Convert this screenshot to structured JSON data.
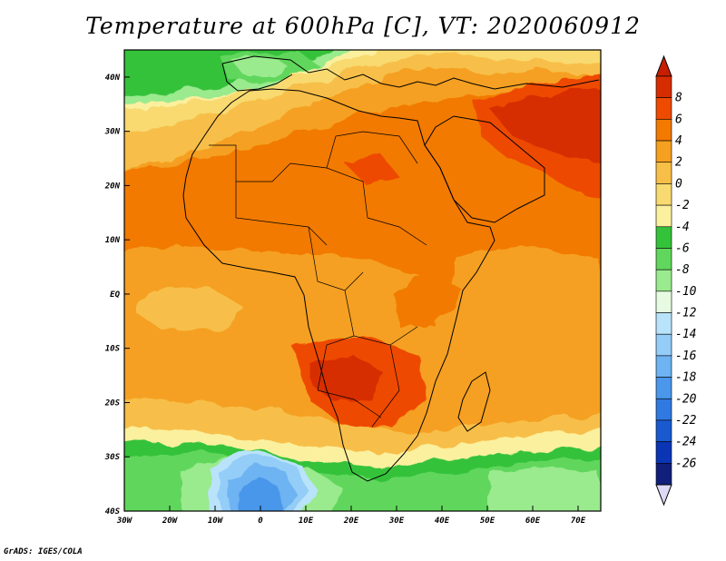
{
  "title": "Temperature at 600hPa [C], VT: 2020060912",
  "credit": "GrADS: IGES/COLA",
  "map_data": {
    "variable": "Temperature at 600hPa",
    "units": "C",
    "valid_time": "2020060912",
    "lon_range": [
      -30,
      75
    ],
    "lat_range": [
      -40,
      45
    ],
    "x_ticks": [
      "30W",
      "20W",
      "10W",
      "0",
      "10E",
      "20E",
      "30E",
      "40E",
      "50E",
      "60E",
      "70E"
    ],
    "y_ticks": [
      "40N",
      "30N",
      "20N",
      "10N",
      "EQ",
      "10S",
      "20S",
      "30S",
      "40S"
    ]
  },
  "colorbar": {
    "labels": [
      "8",
      "6",
      "4",
      "2",
      "0",
      "-2",
      "-4",
      "-6",
      "-8",
      "-10",
      "-12",
      "-14",
      "-16",
      "-18",
      "-20",
      "-22",
      "-24",
      "-26"
    ],
    "colors": [
      "#d62d00",
      "#ee4a00",
      "#f27a00",
      "#f5a020",
      "#f7bf48",
      "#f8da70",
      "#fbf09e",
      "#34c23a",
      "#60d75c",
      "#9aea8e",
      "#e6fbe2",
      "#b9e3fa",
      "#94cdf7",
      "#6eb3f2",
      "#4a97eb",
      "#2f79e0",
      "#1a5ad0",
      "#0a35b5",
      "#111f7a"
    ],
    "cap_top_color": "#c81e00",
    "cap_bottom_color": "#ddd8f5"
  }
}
